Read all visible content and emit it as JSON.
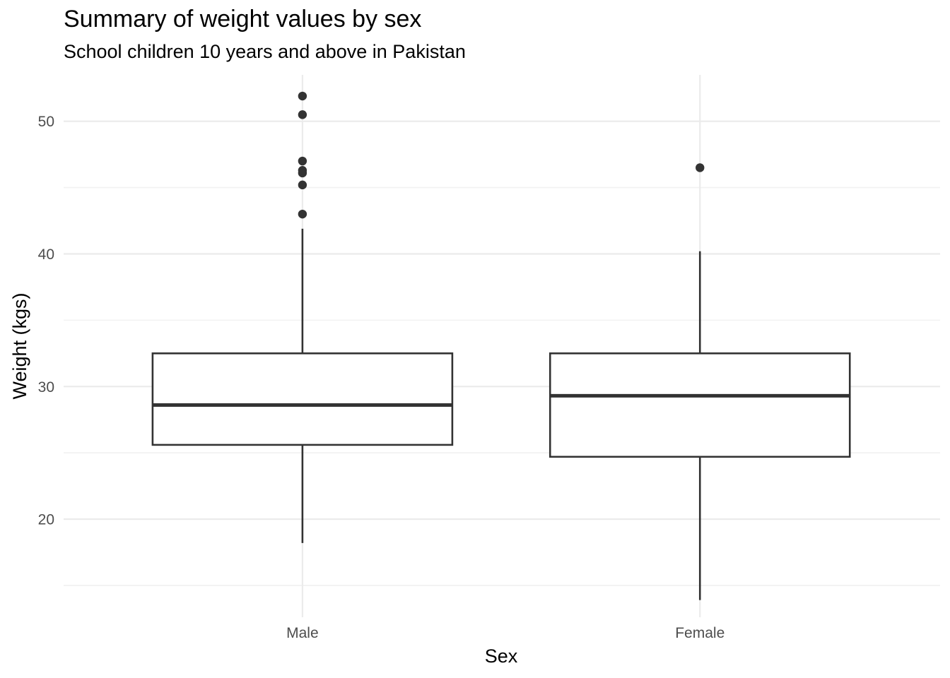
{
  "chart_data": {
    "type": "boxplot",
    "title": "Summary of weight values by sex",
    "subtitle": "School children 10 years and above in Pakistan",
    "xlabel": "Sex",
    "ylabel": "Weight (kgs)",
    "categories": [
      "Male",
      "Female"
    ],
    "ylim": [
      12.6,
      53.5
    ],
    "y_major_ticks": [
      20,
      30,
      40,
      50
    ],
    "y_minor_ticks": [
      15,
      25,
      35,
      45
    ],
    "grid": true,
    "boxes": [
      {
        "category": "Male",
        "min": 18.2,
        "q1": 25.6,
        "median": 28.6,
        "q3": 32.5,
        "max": 41.9,
        "outliers": [
          43.0,
          45.2,
          46.1,
          46.3,
          47.0,
          50.5,
          51.9
        ]
      },
      {
        "category": "Female",
        "min": 13.9,
        "q1": 24.7,
        "median": 29.3,
        "q3": 32.5,
        "max": 40.2,
        "outliers": [
          46.5
        ]
      }
    ],
    "colors": {
      "box_outline": "#333333",
      "box_fill": "#ffffff",
      "grid": "#ebebeb"
    }
  }
}
